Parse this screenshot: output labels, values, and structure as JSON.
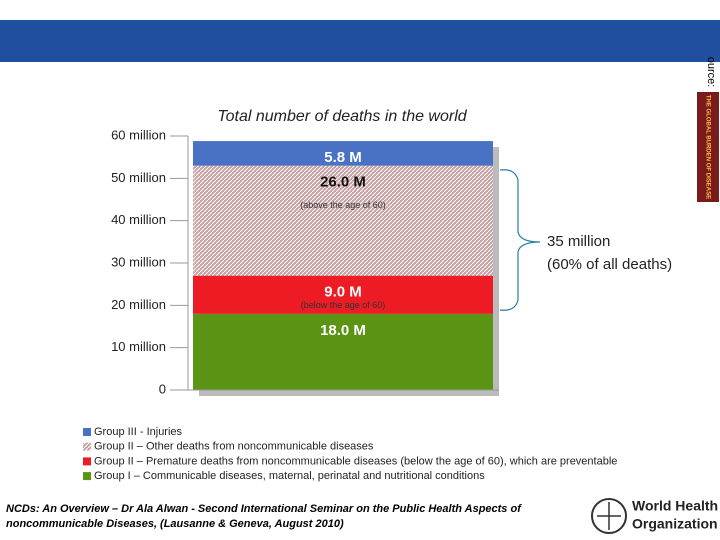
{
  "header": {
    "source_label": "ource:",
    "book_title": "THE GLOBAL BURDEN OF DISEASE"
  },
  "chart_data": {
    "type": "stacked-bar",
    "title": "Total number of deaths in the world",
    "ylim": [
      0,
      60
    ],
    "yticks": [
      0,
      {
        "value": 10,
        "label": "10 million"
      },
      {
        "value": 20,
        "label": "20 million"
      },
      {
        "value": 30,
        "label": "30 million"
      },
      {
        "value": 40,
        "label": "40 million"
      },
      {
        "value": 50,
        "label": "50 million"
      },
      {
        "value": 60,
        "label": "60 million"
      }
    ],
    "series": [
      {
        "name": "Group I – Communicable diseases, maternal, perinatal and nutritional conditions",
        "color": "#5b9414",
        "values": [
          18.0
        ],
        "value_labels": [
          "18.0 M"
        ]
      },
      {
        "name": "Group II – Premature deaths from noncommunicable diseases (below the age of 60), which are preventable",
        "color": "#ed1c24",
        "values": [
          9.0
        ],
        "value_labels": [
          "9.0 M"
        ],
        "note": "(below the age of 60)"
      },
      {
        "name": "Group II – Other deaths from noncommunicable diseases",
        "color": "#c9a0a4",
        "pattern": true,
        "values": [
          26.0
        ],
        "value_labels": [
          "26.0 M"
        ],
        "note": "(above the age of 60)"
      },
      {
        "name": "Group III - Injuries",
        "color": "#4a72c4",
        "values": [
          5.8
        ],
        "value_labels": [
          "5.8 M"
        ]
      }
    ],
    "annotation": [
      "35 million",
      "(60% of all deaths)"
    ]
  },
  "footer": {
    "citation": [
      "NCDs: An Overview – Dr Ala Alwan - Second International Seminar on the Public Health Aspects of",
      "noncommunicable Diseases, (Lausanne & Geneva, August 2010)"
    ],
    "logo": [
      "World Health",
      "Organization"
    ]
  }
}
